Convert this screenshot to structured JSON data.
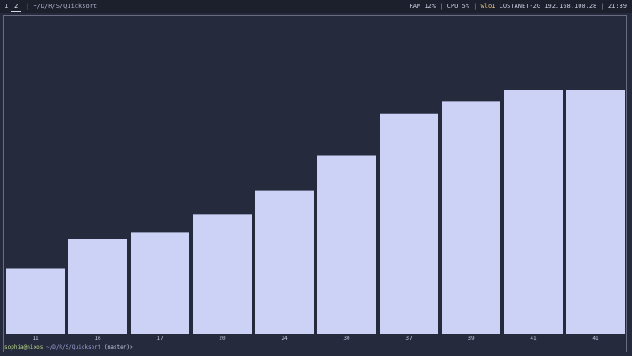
{
  "topbar": {
    "workspaces": [
      "1",
      "2"
    ],
    "active_workspace": "2",
    "window_title": "~/D/R/S/Quicksort",
    "separator": "|",
    "ram": "RAM 12%",
    "cpu": "CPU  5%",
    "network_iface": "wlo1",
    "network_info": "COSTANET-2G 192.168.100.28",
    "clock": "21:39"
  },
  "prompt": {
    "user_host": "sophia@nixos",
    "cwd": "~/D/R/S/Quicksort",
    "branch": "(master)",
    "arrow": ">"
  },
  "colors": {
    "bar": "#ccd2f5",
    "background": "#262a3d",
    "label": "#c9cbe0"
  },
  "chart_data": {
    "type": "bar",
    "values": [
      11,
      16,
      17,
      20,
      24,
      30,
      37,
      39,
      41,
      41
    ],
    "labels": [
      "11",
      "16",
      "17",
      "20",
      "24",
      "30",
      "37",
      "39",
      "41",
      "41"
    ],
    "ylim": [
      0,
      41
    ]
  }
}
